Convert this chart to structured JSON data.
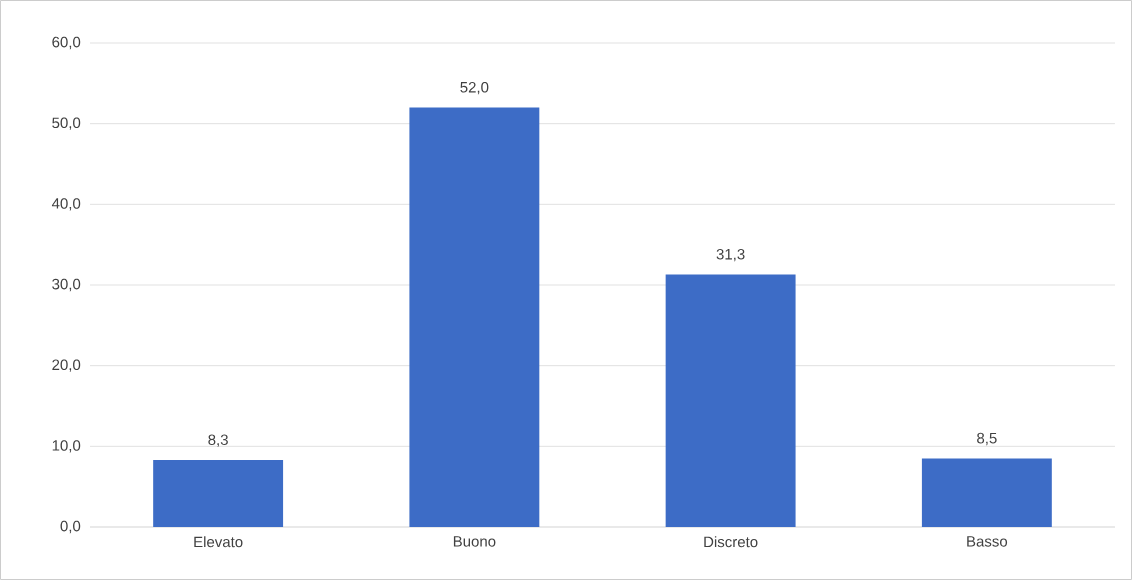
{
  "chart_data": {
    "type": "bar",
    "categories": [
      "Elevato",
      "Buono",
      "Discreto",
      "Basso"
    ],
    "values": [
      8.3,
      52.0,
      31.3,
      8.5
    ],
    "value_labels": [
      "8,3",
      "52,0",
      "31,3",
      "8,5"
    ],
    "color": "#3d6cc6",
    "ylim": [
      0,
      60
    ],
    "yticks": [
      {
        "value": 0,
        "label": "0,0"
      },
      {
        "value": 10,
        "label": "10,0"
      },
      {
        "value": 20,
        "label": "20,0"
      },
      {
        "value": 30,
        "label": "30,0"
      },
      {
        "value": 40,
        "label": "40,0"
      },
      {
        "value": 50,
        "label": "50,0"
      },
      {
        "value": 60,
        "label": "60,0"
      }
    ],
    "grid": "y"
  }
}
